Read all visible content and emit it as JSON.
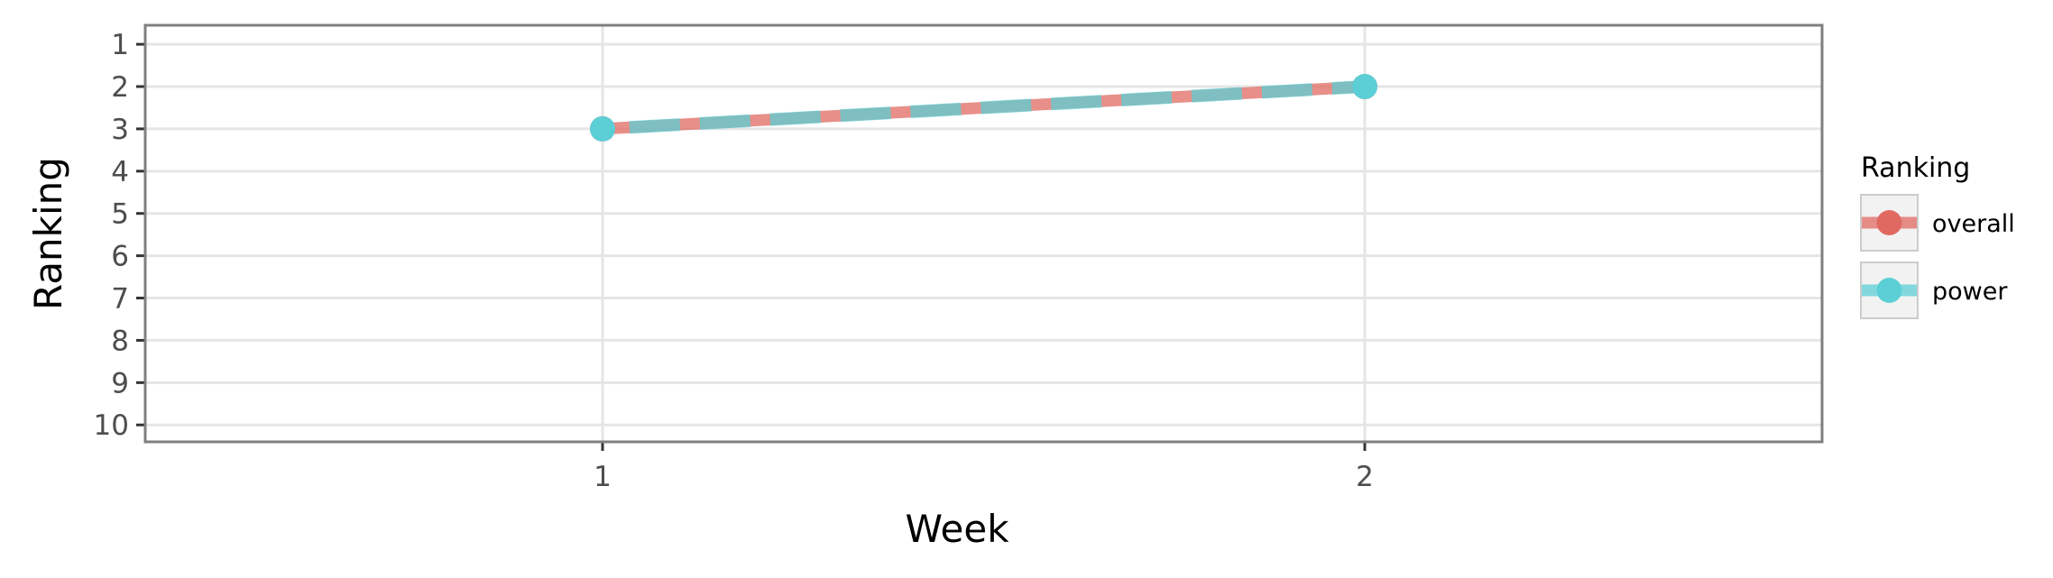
{
  "chart_data": {
    "type": "line",
    "xlabel": "Week",
    "ylabel": "Ranking",
    "x": [
      1,
      2
    ],
    "xticks": [
      "1",
      "2"
    ],
    "xlim": [
      0.4,
      2.6
    ],
    "yticks": [
      "1",
      "2",
      "3",
      "4",
      "5",
      "6",
      "7",
      "8",
      "9",
      "10"
    ],
    "ylim": [
      10.4,
      0.55
    ],
    "y_reversed": true,
    "grid": true,
    "legend": {
      "title": "Ranking",
      "placement": "right",
      "entries": [
        "overall",
        "power"
      ]
    },
    "series": [
      {
        "name": "overall",
        "x": [
          1,
          2
        ],
        "values": [
          3,
          2
        ],
        "color": "#e06961",
        "style": "solid"
      },
      {
        "name": "power",
        "x": [
          1,
          2
        ],
        "values": [
          3,
          2
        ],
        "color": "#5ccfd6",
        "style": "dashed"
      }
    ]
  }
}
